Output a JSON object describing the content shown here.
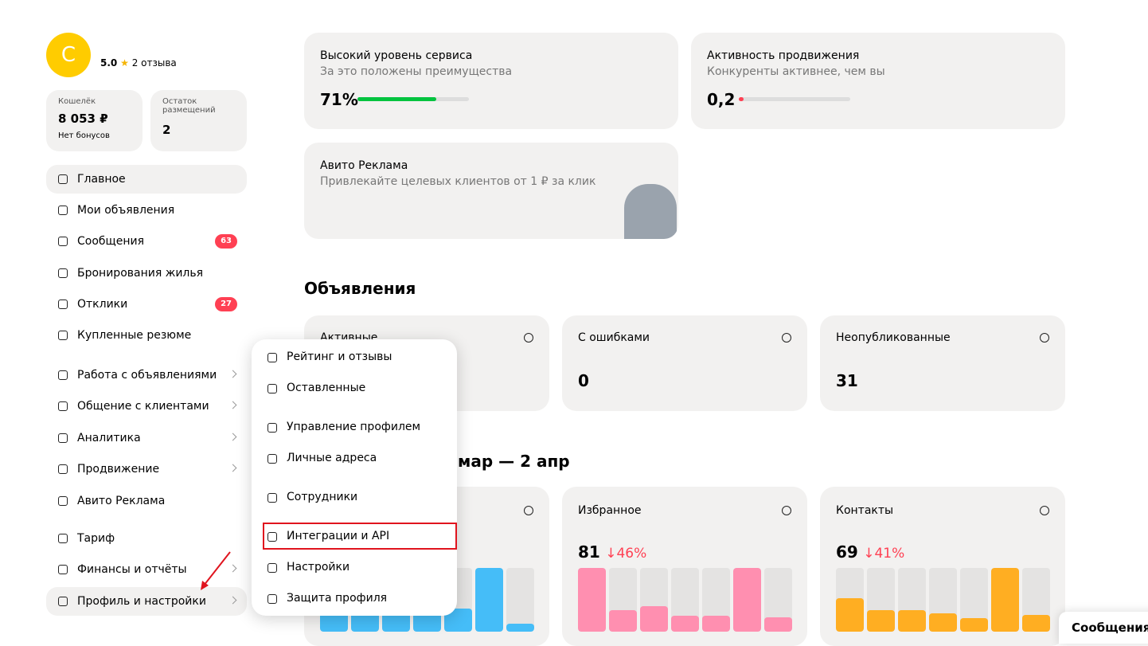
{
  "profile": {
    "initial": "С",
    "rating": "5.0",
    "reviews": "2 отзыва"
  },
  "wallet": {
    "label": "Кошелёк",
    "amount": "8 053 ₽",
    "bonus": "Нет бонусов"
  },
  "placements": {
    "label": "Остаток размещений",
    "value": 2
  },
  "nav": [
    {
      "label": "Главное"
    },
    {
      "label": "Мои объявления"
    },
    {
      "label": "Сообщения",
      "badge": 63
    },
    {
      "label": "Бронирования жилья"
    },
    {
      "label": "Отклики",
      "badge": 27
    },
    {
      "label": "Купленные резюме"
    },
    {
      "label": "Работа с объявлениями"
    },
    {
      "label": "Общение с клиентами"
    },
    {
      "label": "Аналитика"
    },
    {
      "label": "Продвижение"
    },
    {
      "label": "Авито Реклама"
    },
    {
      "label": "Тариф"
    },
    {
      "label": "Финансы и отчёты"
    },
    {
      "label": "Профиль и настройки"
    }
  ],
  "menu": [
    {
      "label": "Рейтинг и отзывы"
    },
    {
      "label": "Оставленные"
    },
    {
      "label": "Управление профилем"
    },
    {
      "label": "Личные адреса"
    },
    {
      "label": "Сотрудники"
    },
    {
      "label": "Интеграции и API"
    },
    {
      "label": "Настройки"
    },
    {
      "label": "Защита профиля"
    }
  ],
  "service": {
    "title": "Высокий уровень сервиса",
    "subtitle": "За это положены преимущества",
    "value": 71,
    "value_label": "71%"
  },
  "promotion": {
    "title": "Активность продвижения",
    "subtitle": "Конкуренты активнее, чем вы",
    "value": 0.2,
    "value_label": "0,2"
  },
  "ad": {
    "title": "Авито Реклама",
    "subtitle": "Привлекайте целевых клиентов от 1 ₽ за клик"
  },
  "listings": {
    "title": "Объявления",
    "cards": [
      {
        "label": "Активные"
      },
      {
        "label": "С ошибками",
        "value": 0
      },
      {
        "label": "Неопубликованные",
        "value": 31
      }
    ]
  },
  "stats": {
    "period": "мар — 2 апр",
    "cards": [
      {
        "color": "#45bdf8",
        "bars": [
          30,
          30,
          30,
          30,
          36,
          100,
          12
        ]
      },
      {
        "label": "Избранное",
        "value": 81,
        "change": "↓46%",
        "color": "#ff8fb0",
        "bars": [
          100,
          34,
          40,
          25,
          25,
          100,
          22
        ]
      },
      {
        "label": "Контакты",
        "value": 69,
        "change": "↓41%",
        "color": "#ffae22",
        "bars": [
          52,
          34,
          34,
          29,
          21,
          100,
          26
        ]
      }
    ]
  },
  "tab": "Сообщения"
}
